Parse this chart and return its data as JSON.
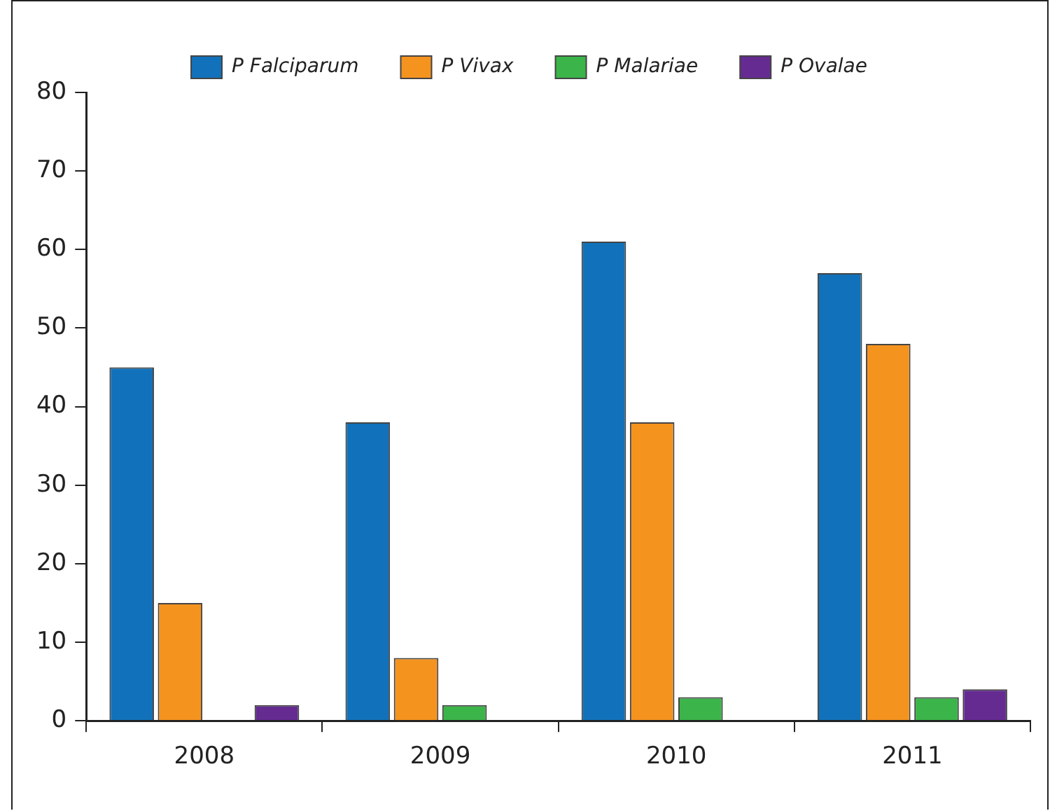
{
  "chart_data": {
    "type": "bar",
    "categories": [
      "2008",
      "2009",
      "2010",
      "2011"
    ],
    "series": [
      {
        "name": "P Falciparum",
        "color": "#1172bb",
        "values": [
          45,
          38,
          61,
          57
        ]
      },
      {
        "name": "P Vivax",
        "color": "#f5931f",
        "values": [
          15,
          8,
          38,
          48
        ]
      },
      {
        "name": "P Malariae",
        "color": "#3bb44a",
        "values": [
          0,
          2,
          3,
          3
        ]
      },
      {
        "name": "P Ovalae",
        "color": "#652b91",
        "values": [
          2,
          0,
          0,
          4
        ]
      }
    ],
    "ylim": [
      0,
      80
    ],
    "yticks": [
      0,
      10,
      20,
      30,
      40,
      50,
      60,
      70,
      80
    ],
    "grid": false,
    "legend": "top"
  }
}
